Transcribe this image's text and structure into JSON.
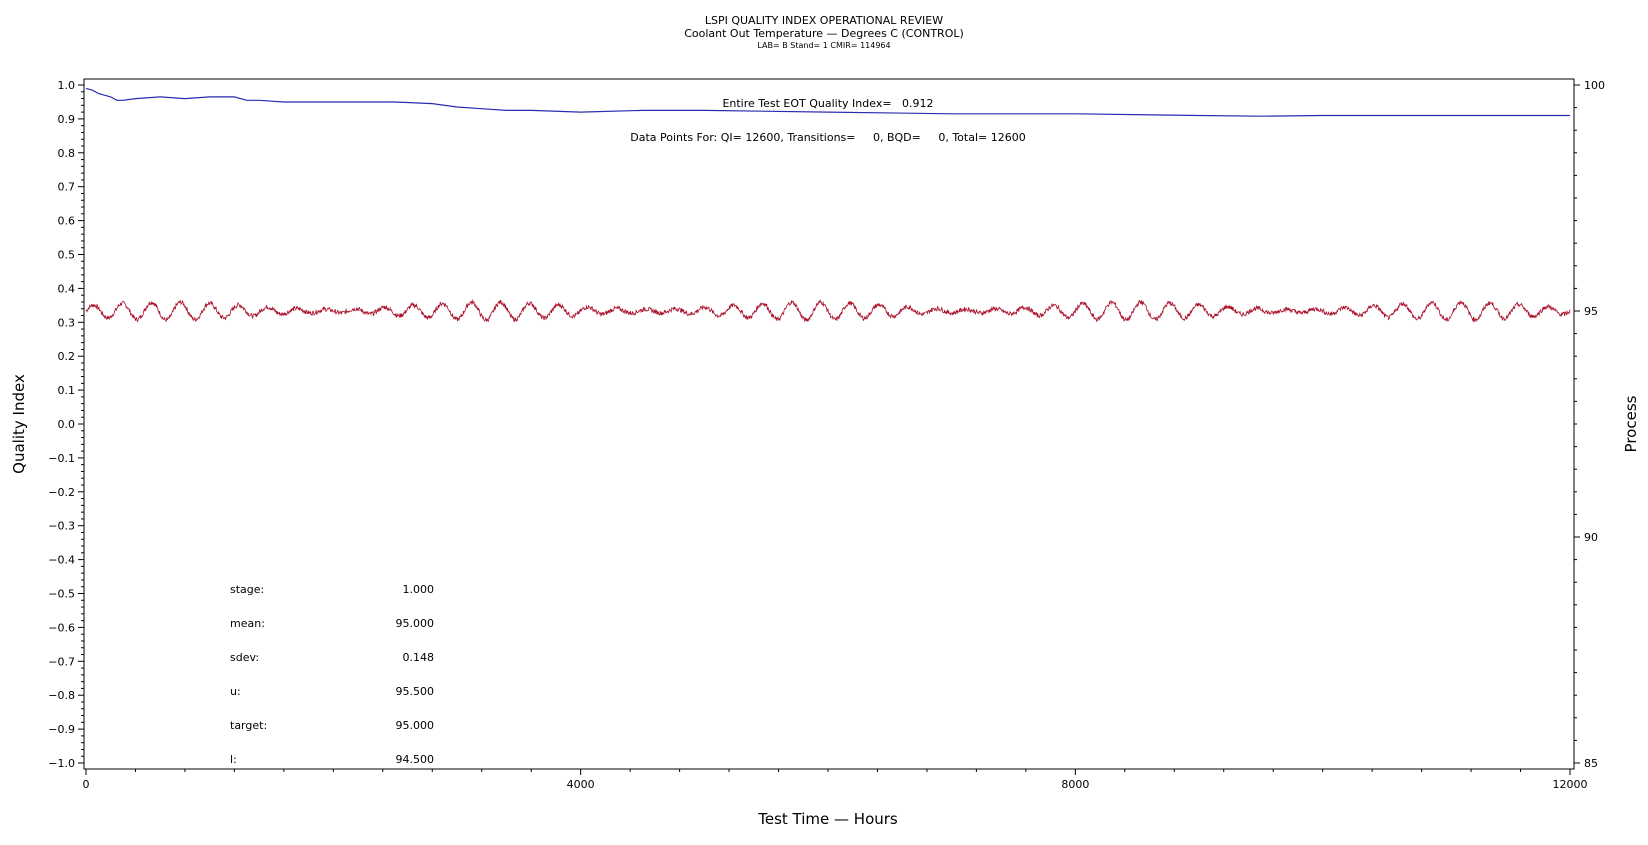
{
  "header": {
    "title": "LSPI QUALITY INDEX OPERATIONAL REVIEW",
    "subtitle": "Coolant Out Temperature — Degrees C (CONTROL)",
    "sub2": "LAB= B Stand= 1 CMIR= 114964"
  },
  "annotations": {
    "eot": "Entire Test EOT Quality Index=   0.912",
    "points": "Data Points For: QI= 12600, Transitions=     0, BQD=     0, Total= 12600"
  },
  "stats": [
    {
      "label": "stage:",
      "value": "1.000"
    },
    {
      "label": "mean:",
      "value": "95.000"
    },
    {
      "label": "sdev:",
      "value": "0.148"
    },
    {
      "label": "u:",
      "value": "95.500"
    },
    {
      "label": "target:",
      "value": "95.000"
    },
    {
      "label": "l:",
      "value": "94.500"
    }
  ],
  "chart_data": {
    "type": "line",
    "xlabel": "Test Time — Hours",
    "ylabel": "Quality Index",
    "y2label": "Process",
    "xlim": [
      0,
      12000
    ],
    "ylim": [
      -1.0,
      1.0
    ],
    "y2lim": [
      85,
      100
    ],
    "x_ticks": [
      0,
      4000,
      8000,
      12000
    ],
    "y_ticks": [
      "1.0",
      "0.9",
      "0.8",
      "0.7",
      "0.6",
      "0.5",
      "0.4",
      "0.3",
      "0.2",
      "0.1",
      "0.0",
      "−0.1",
      "−0.2",
      "−0.3",
      "−0.4",
      "−0.5",
      "−0.6",
      "−0.7",
      "−0.8",
      "−0.9",
      "−1.0"
    ],
    "y_tick_values": [
      1.0,
      0.9,
      0.8,
      0.7,
      0.6,
      0.5,
      0.4,
      0.3,
      0.2,
      0.1,
      0.0,
      -0.1,
      -0.2,
      -0.3,
      -0.4,
      -0.5,
      -0.6,
      -0.7,
      -0.8,
      -0.9,
      -1.0
    ],
    "y2_ticks": [
      100,
      95,
      90,
      85
    ],
    "series": [
      {
        "axis": "left",
        "color": "#2b2bb0",
        "x": [
          0,
          50,
          100,
          150,
          200,
          250,
          300,
          400,
          600,
          800,
          1000,
          1200,
          1300,
          1400,
          1600,
          1800,
          2000,
          2200,
          2500,
          2800,
          3000,
          3200,
          3400,
          3600,
          4000,
          4500,
          5000,
          6000,
          7000,
          8000,
          9000,
          9500,
          10000,
          11000,
          12000
        ],
        "y": [
          0.99,
          0.985,
          0.975,
          0.97,
          0.965,
          0.955,
          0.955,
          0.96,
          0.965,
          0.96,
          0.965,
          0.965,
          0.955,
          0.955,
          0.95,
          0.95,
          0.95,
          0.95,
          0.95,
          0.945,
          0.935,
          0.93,
          0.925,
          0.925,
          0.92,
          0.925,
          0.925,
          0.92,
          0.915,
          0.915,
          0.91,
          0.908,
          0.91,
          0.91,
          0.91
        ]
      },
      {
        "axis": "right",
        "color": "#a8102a",
        "mean": 95.0,
        "cycles": 51,
        "amplitude": 0.2,
        "noise": 0.05
      }
    ]
  }
}
